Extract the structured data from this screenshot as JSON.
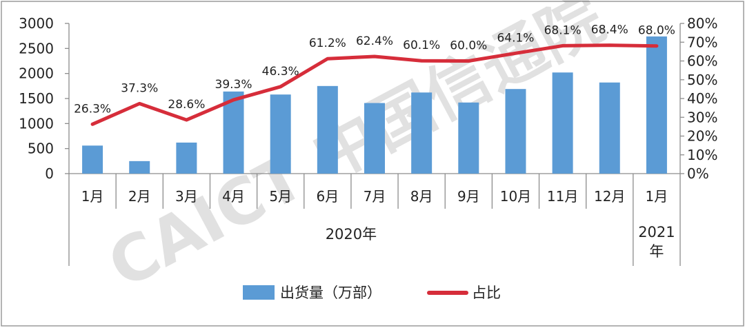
{
  "chart_data": {
    "type": "bar+line",
    "categories": [
      "1月",
      "2月",
      "3月",
      "4月",
      "5月",
      "6月",
      "7月",
      "8月",
      "9月",
      "10月",
      "11月",
      "12月",
      "1月"
    ],
    "groups": [
      {
        "label": "2020年",
        "span": [
          0,
          11
        ]
      },
      {
        "label": "2021年",
        "span": [
          12,
          12
        ]
      }
    ],
    "series": [
      {
        "name": "出货量（万部）",
        "type": "bar",
        "axis": "left",
        "color": "#5b9bd5",
        "values": [
          560,
          250,
          620,
          1640,
          1580,
          1750,
          1410,
          1620,
          1420,
          1690,
          2020,
          1820,
          2740
        ]
      },
      {
        "name": "占比",
        "type": "line",
        "axis": "right",
        "color": "#d62d3a",
        "values": [
          26.3,
          37.3,
          28.6,
          39.3,
          46.3,
          61.2,
          62.4,
          60.1,
          60.0,
          64.1,
          68.1,
          68.4,
          68.0
        ],
        "labels": [
          "26.3%",
          "37.3%",
          "28.6%",
          "39.3%",
          "46.3%",
          "61.2%",
          "62.4%",
          "60.1%",
          "60.0%",
          "64.1%",
          "68.1%",
          "68.4%",
          "68.0%"
        ]
      }
    ],
    "y_left": {
      "min": 0,
      "max": 3000,
      "step": 500,
      "ticks": [
        "0",
        "500",
        "1000",
        "1500",
        "2000",
        "2500",
        "3000"
      ]
    },
    "y_right": {
      "min": 0,
      "max": 80,
      "step": 10,
      "ticks": [
        "0%",
        "10%",
        "20%",
        "30%",
        "40%",
        "50%",
        "60%",
        "70%",
        "80%"
      ]
    },
    "legend": {
      "placement": "bottom"
    },
    "grid": false,
    "watermark": "CAICT 中国信通院"
  }
}
